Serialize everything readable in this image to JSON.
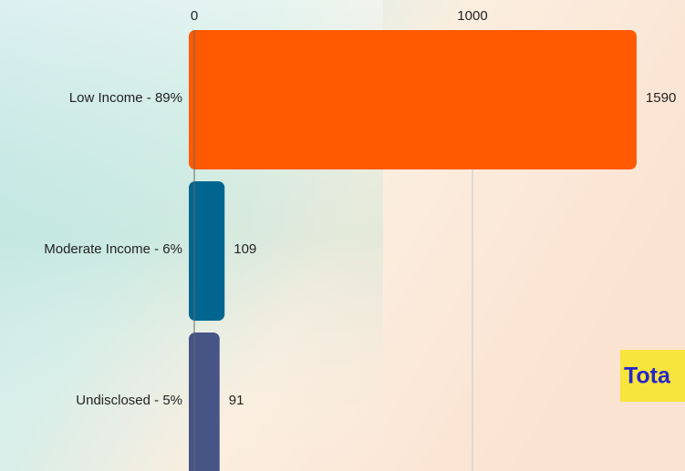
{
  "chart_data": {
    "type": "bar",
    "orientation": "horizontal",
    "categories": [
      "Low Income - 89%",
      "Moderate Income - 6%",
      "Undisclosed - 5%"
    ],
    "values": [
      1590,
      109,
      91
    ],
    "colors": [
      "#ff5a00",
      "#00668f",
      "#465486"
    ],
    "xlim": [
      0,
      1764
    ],
    "xticks": [
      0,
      1000
    ],
    "grid": true,
    "annotation": "Tota"
  }
}
